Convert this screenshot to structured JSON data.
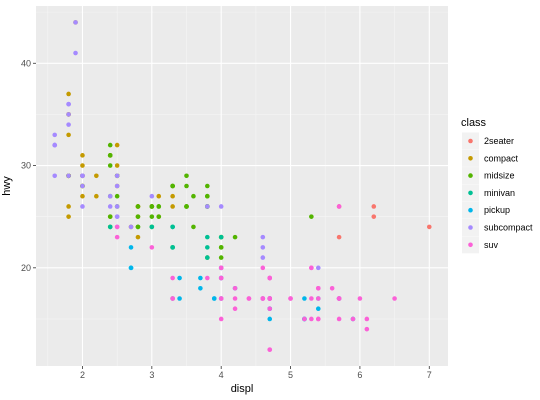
{
  "chart_data": {
    "type": "scatter",
    "xlabel": "displ",
    "ylabel": "hwy",
    "xlim": [
      1.33,
      7.27
    ],
    "ylim": [
      10.4,
      45.6
    ],
    "x_ticks": [
      2,
      3,
      4,
      5,
      6,
      7
    ],
    "y_ticks": [
      20,
      30,
      40
    ],
    "grid": true,
    "legend": {
      "title": "class",
      "placement": "right",
      "entries": [
        "2seater",
        "compact",
        "midsize",
        "minivan",
        "pickup",
        "subcompact",
        "suv"
      ]
    },
    "colors": {
      "2seater": "#F8766D",
      "compact": "#C49A00",
      "midsize": "#53B400",
      "minivan": "#00C094",
      "pickup": "#00B6EB",
      "subcompact": "#A58AFF",
      "suv": "#FB61D7"
    },
    "series": [
      {
        "name": "2seater",
        "points": [
          [
            5.7,
            26
          ],
          [
            5.7,
            23
          ],
          [
            6.2,
            26
          ],
          [
            6.2,
            25
          ],
          [
            7.0,
            24
          ]
        ]
      },
      {
        "name": "compact",
        "points": [
          [
            1.8,
            29
          ],
          [
            1.8,
            29
          ],
          [
            2.0,
            31
          ],
          [
            2.0,
            30
          ],
          [
            2.8,
            26
          ],
          [
            2.8,
            26
          ],
          [
            3.1,
            27
          ],
          [
            1.8,
            26
          ],
          [
            1.8,
            25
          ],
          [
            2.0,
            28
          ],
          [
            2.0,
            27
          ],
          [
            2.8,
            25
          ],
          [
            3.1,
            25
          ],
          [
            1.9,
            44
          ],
          [
            2.0,
            29
          ],
          [
            2.0,
            29
          ],
          [
            2.5,
            28
          ],
          [
            2.5,
            29
          ],
          [
            1.8,
            29
          ],
          [
            1.8,
            29
          ],
          [
            2.0,
            28
          ],
          [
            2.0,
            29
          ],
          [
            2.8,
            26
          ],
          [
            1.8,
            33
          ],
          [
            1.8,
            35
          ],
          [
            1.8,
            37
          ],
          [
            1.8,
            35
          ],
          [
            2.2,
            29
          ],
          [
            2.2,
            27
          ],
          [
            2.4,
            31
          ],
          [
            2.4,
            31
          ],
          [
            3.0,
            26
          ],
          [
            3.0,
            26
          ],
          [
            3.3,
            26
          ],
          [
            3.3,
            27
          ],
          [
            2.7,
            24
          ],
          [
            2.4,
            25
          ],
          [
            2.5,
            32
          ],
          [
            2.5,
            30
          ],
          [
            2.5,
            29
          ],
          [
            2.8,
            23
          ]
        ]
      },
      {
        "name": "midsize",
        "points": [
          [
            2.8,
            26
          ],
          [
            3.1,
            25
          ],
          [
            4.2,
            23
          ],
          [
            2.4,
            31
          ],
          [
            2.4,
            31
          ],
          [
            3.1,
            26
          ],
          [
            3.5,
            26
          ],
          [
            3.6,
            27
          ],
          [
            3.5,
            26
          ],
          [
            3.3,
            28
          ],
          [
            3.8,
            26
          ],
          [
            3.8,
            27
          ],
          [
            2.5,
            29
          ],
          [
            2.5,
            27
          ],
          [
            2.8,
            24
          ],
          [
            2.8,
            25
          ],
          [
            2.4,
            27
          ],
          [
            2.4,
            30
          ],
          [
            2.5,
            26
          ],
          [
            3.0,
            26
          ],
          [
            3.0,
            25
          ],
          [
            3.5,
            29
          ],
          [
            3.5,
            28
          ],
          [
            3.3,
            28
          ],
          [
            3.3,
            28
          ],
          [
            4.0,
            23
          ],
          [
            4.0,
            22
          ],
          [
            2.4,
            24
          ],
          [
            2.4,
            25
          ],
          [
            3.0,
            26
          ],
          [
            3.0,
            24
          ],
          [
            3.1,
            26
          ],
          [
            3.5,
            26
          ],
          [
            3.5,
            26
          ],
          [
            3.8,
            27
          ],
          [
            3.8,
            26
          ],
          [
            3.8,
            28
          ],
          [
            4.0,
            23
          ],
          [
            5.3,
            25
          ],
          [
            3.6,
            24
          ],
          [
            1.8,
            29
          ],
          [
            2.0,
            28
          ],
          [
            2.4,
            32
          ],
          [
            2.8,
            24
          ],
          [
            3.3,
            22
          ],
          [
            3.8,
            21
          ],
          [
            3.8,
            26
          ],
          [
            4.0,
            21
          ],
          [
            4.0,
            22
          ]
        ]
      },
      {
        "name": "minivan",
        "points": [
          [
            2.4,
            24
          ],
          [
            3.0,
            24
          ],
          [
            3.3,
            22
          ],
          [
            3.3,
            22
          ],
          [
            3.3,
            24
          ],
          [
            3.3,
            24
          ],
          [
            3.3,
            17
          ],
          [
            3.8,
            22
          ],
          [
            3.8,
            21
          ],
          [
            3.8,
            23
          ],
          [
            4.0,
            23
          ]
        ]
      },
      {
        "name": "pickup",
        "points": [
          [
            3.7,
            19
          ],
          [
            3.7,
            18
          ],
          [
            3.9,
            17
          ],
          [
            3.9,
            17
          ],
          [
            4.7,
            17
          ],
          [
            4.7,
            17
          ],
          [
            4.7,
            16
          ],
          [
            5.2,
            15
          ],
          [
            5.2,
            15
          ],
          [
            4.7,
            17
          ],
          [
            5.7,
            17
          ],
          [
            5.9,
            15
          ],
          [
            4.7,
            17
          ],
          [
            4.7,
            15
          ],
          [
            4.7,
            17
          ],
          [
            4.7,
            16
          ],
          [
            5.2,
            17
          ],
          [
            5.2,
            15
          ],
          [
            5.7,
            17
          ],
          [
            2.7,
            20
          ],
          [
            2.7,
            20
          ],
          [
            3.4,
            17
          ],
          [
            3.4,
            19
          ],
          [
            4.0,
            20
          ],
          [
            4.0,
            20
          ],
          [
            4.0,
            17
          ],
          [
            4.6,
            17
          ],
          [
            5.4,
            17
          ],
          [
            4.2,
            18
          ],
          [
            4.0,
            19
          ],
          [
            5.4,
            16
          ],
          [
            2.7,
            22
          ],
          [
            4.0,
            19
          ]
        ]
      },
      {
        "name": "subcompact",
        "points": [
          [
            1.6,
            33
          ],
          [
            1.6,
            32
          ],
          [
            1.6,
            32
          ],
          [
            1.6,
            29
          ],
          [
            1.6,
            32
          ],
          [
            1.8,
            34
          ],
          [
            1.8,
            36
          ],
          [
            1.8,
            36
          ],
          [
            2.0,
            29
          ],
          [
            2.4,
            26
          ],
          [
            2.4,
            27
          ],
          [
            2.5,
            26
          ],
          [
            2.5,
            25
          ],
          [
            1.9,
            44
          ],
          [
            1.9,
            41
          ],
          [
            2.0,
            29
          ],
          [
            2.0,
            26
          ],
          [
            2.5,
            28
          ],
          [
            2.5,
            29
          ],
          [
            3.8,
            26
          ],
          [
            4.0,
            26
          ],
          [
            4.6,
            23
          ],
          [
            4.6,
            22
          ],
          [
            5.4,
            20
          ],
          [
            2.7,
            24
          ],
          [
            2.5,
            24
          ],
          [
            2.5,
            25
          ],
          [
            2.0,
            28
          ],
          [
            3.0,
            27
          ],
          [
            1.8,
            35
          ],
          [
            1.8,
            29
          ],
          [
            2.0,
            29
          ],
          [
            4.6,
            21
          ]
        ]
      },
      {
        "name": "suv",
        "points": [
          [
            5.3,
            20
          ],
          [
            5.3,
            15
          ],
          [
            5.3,
            20
          ],
          [
            5.7,
            17
          ],
          [
            6.0,
            17
          ],
          [
            5.7,
            26
          ],
          [
            6.5,
            17
          ],
          [
            4.7,
            12
          ],
          [
            4.7,
            17
          ],
          [
            5.2,
            15
          ],
          [
            5.7,
            17
          ],
          [
            5.9,
            15
          ],
          [
            4.7,
            12
          ],
          [
            4.7,
            17
          ],
          [
            4.7,
            17
          ],
          [
            5.7,
            17
          ],
          [
            6.1,
            14
          ],
          [
            4.0,
            19
          ],
          [
            4.2,
            18
          ],
          [
            4.4,
            17
          ],
          [
            4.6,
            17
          ],
          [
            5.4,
            15
          ],
          [
            5.4,
            17
          ],
          [
            5.4,
            18
          ],
          [
            4.0,
            19
          ],
          [
            4.0,
            17
          ],
          [
            4.6,
            17
          ],
          [
            5.0,
            17
          ],
          [
            4.7,
            16
          ],
          [
            5.0,
            17
          ],
          [
            4.2,
            17
          ],
          [
            4.2,
            16
          ],
          [
            4.6,
            20
          ],
          [
            5.4,
            15
          ],
          [
            2.5,
            24
          ],
          [
            2.5,
            23
          ],
          [
            3.3,
            17
          ],
          [
            3.3,
            17
          ],
          [
            4.0,
            20
          ],
          [
            4.0,
            20
          ],
          [
            4.0,
            15
          ],
          [
            4.7,
            19
          ],
          [
            4.7,
            19
          ],
          [
            5.3,
            17
          ],
          [
            5.6,
            18
          ],
          [
            5.4,
            18
          ],
          [
            4.0,
            17
          ],
          [
            4.7,
            19
          ],
          [
            3.0,
            22
          ],
          [
            3.3,
            19
          ],
          [
            3.8,
            19
          ],
          [
            4.4,
            17
          ],
          [
            4.6,
            17
          ],
          [
            4.7,
            17
          ],
          [
            5.7,
            15
          ],
          [
            5.7,
            17
          ],
          [
            6.1,
            15
          ],
          [
            4.7,
            17
          ],
          [
            4.7,
            17
          ],
          [
            4.7,
            19
          ]
        ]
      }
    ]
  }
}
